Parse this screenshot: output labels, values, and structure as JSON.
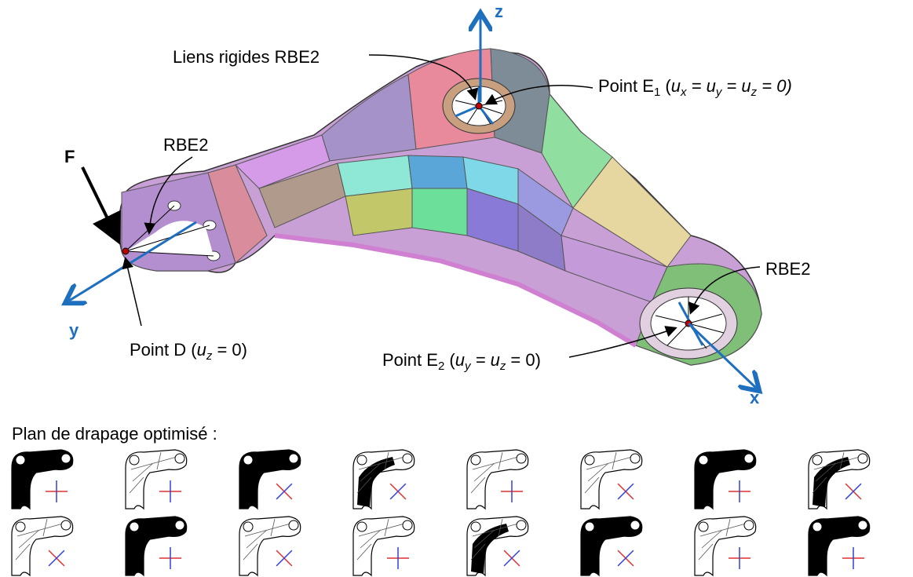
{
  "labels": {
    "z": "z",
    "liens": "Liens rigides RBE2",
    "point_e1": [
      "Point E",
      "1",
      " (",
      "u",
      "x",
      " = ",
      "u",
      "y",
      " = ",
      "u",
      "z",
      " = 0)"
    ],
    "rbe2_left": "RBE2",
    "f": "F",
    "y": "y",
    "point_d": [
      "Point D (",
      "u",
      "z",
      " = 0)"
    ],
    "rbe2_right": "RBE2",
    "point_e2": [
      "Point E",
      "2",
      " (",
      "u",
      "y",
      " = ",
      "u",
      "z",
      " = 0)"
    ],
    "x": "x"
  },
  "caption": "Plan de drapage optimisé :"
}
